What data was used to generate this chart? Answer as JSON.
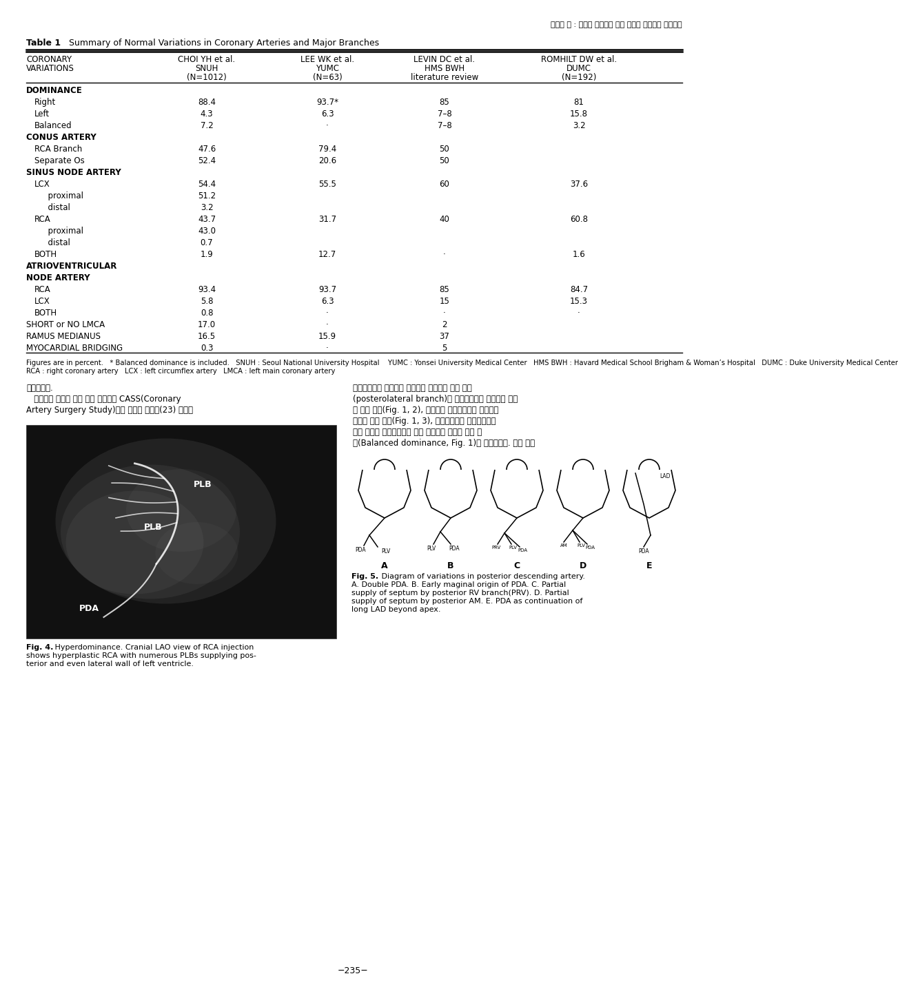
{
  "page_title": "최영희 외 : 관동맥 조영술에 의한 한국인 관동맥의 정상변이",
  "table_title": "Table 1",
  "table_title_rest": " Summary of Normal Variations in Coronary Arteries and Major Branches",
  "col_headers": [
    [
      "CORONARY",
      "VARIATIONS",
      ""
    ],
    [
      "CHOI YH et al.",
      "SNUH",
      "(N=1012)"
    ],
    [
      "LEE WK et al.",
      "YUMC",
      "(N=63)"
    ],
    [
      "LEVIN DC et al.",
      "HMS BWH",
      "literature review"
    ],
    [
      "ROMHILT DW et al.",
      "DUMC",
      "(N=192)"
    ]
  ],
  "rows": [
    {
      "label": "DOMINANCE",
      "indent": 0,
      "bold": true,
      "values": [
        "",
        "",
        "",
        ""
      ]
    },
    {
      "label": "Right",
      "indent": 1,
      "bold": false,
      "values": [
        "88.4",
        "93.7*",
        "85",
        "81"
      ]
    },
    {
      "label": "Left",
      "indent": 1,
      "bold": false,
      "values": [
        "4.3",
        "6.3",
        "7–8",
        "15.8"
      ]
    },
    {
      "label": "Balanced",
      "indent": 1,
      "bold": false,
      "values": [
        "7.2",
        "·",
        "7–8",
        "3.2"
      ]
    },
    {
      "label": "CONUS ARTERY",
      "indent": 0,
      "bold": true,
      "values": [
        "",
        "",
        "",
        ""
      ]
    },
    {
      "label": "RCA Branch",
      "indent": 1,
      "bold": false,
      "values": [
        "47.6",
        "79.4",
        "50",
        ""
      ]
    },
    {
      "label": "Separate Os",
      "indent": 1,
      "bold": false,
      "values": [
        "52.4",
        "20.6",
        "50",
        ""
      ]
    },
    {
      "label": "SINUS NODE ARTERY",
      "indent": 0,
      "bold": true,
      "values": [
        "",
        "",
        "",
        ""
      ]
    },
    {
      "label": "LCX",
      "indent": 1,
      "bold": false,
      "values": [
        "54.4",
        "55.5",
        "60",
        "37.6"
      ]
    },
    {
      "label": "  proximal",
      "indent": 2,
      "bold": false,
      "values": [
        "51.2",
        "",
        "",
        ""
      ]
    },
    {
      "label": "  distal",
      "indent": 2,
      "bold": false,
      "values": [
        "3.2",
        "",
        "",
        ""
      ]
    },
    {
      "label": "RCA",
      "indent": 1,
      "bold": false,
      "values": [
        "43.7",
        "31.7",
        "40",
        "60.8"
      ]
    },
    {
      "label": "  proximal",
      "indent": 2,
      "bold": false,
      "values": [
        "43.0",
        "",
        "",
        ""
      ]
    },
    {
      "label": "  distal",
      "indent": 2,
      "bold": false,
      "values": [
        "0.7",
        "",
        "",
        ""
      ]
    },
    {
      "label": "BOTH",
      "indent": 1,
      "bold": false,
      "values": [
        "1.9",
        "12.7",
        "·",
        "1.6"
      ]
    },
    {
      "label": "ATRIOVENTRICULAR",
      "indent": 0,
      "bold": true,
      "values": [
        "",
        "",
        "",
        ""
      ]
    },
    {
      "label": "NODE ARTERY",
      "indent": 0,
      "bold": true,
      "values": [
        "",
        "",
        "",
        ""
      ]
    },
    {
      "label": "RCA",
      "indent": 1,
      "bold": false,
      "values": [
        "93.4",
        "93.7",
        "85",
        "84.7"
      ]
    },
    {
      "label": "LCX",
      "indent": 1,
      "bold": false,
      "values": [
        "5.8",
        "6.3",
        "15",
        "15.3"
      ]
    },
    {
      "label": "BOTH",
      "indent": 1,
      "bold": false,
      "values": [
        "0.8",
        "·",
        "·",
        "·"
      ]
    },
    {
      "label": "SHORT or NO LMCA",
      "indent": 0,
      "bold": false,
      "values": [
        "17.0",
        "·",
        "2",
        ""
      ]
    },
    {
      "label": "RAMUS MEDIANUS",
      "indent": 0,
      "bold": false,
      "values": [
        "16.5",
        "15.9",
        "37",
        ""
      ]
    },
    {
      "label": "MYOCARDIAL BRIDGING",
      "indent": 0,
      "bold": false,
      "values": [
        "0.3",
        "·",
        "5",
        ""
      ]
    }
  ],
  "footnote_line1": "Figures are in percent.   * Balanced dominance is included.   SNUH : Seoul National University Hospital    YUMC : Yonsei University Medical Center   HMS BWH : Havard Medical School Brigham & Woman’s Hospital   DUMC : Duke University Medical Center",
  "footnote_line2": "RCA : right coronary artery   LCX : left circumflex artery   LMCA : left main coronary artery",
  "korean_left_1": "제외하였다.",
  "korean_left_2": "   관동맥의 우세는 가장 널리 통용되는 CASS(Coronary",
  "korean_left_3": "Artery Surgery Study)에서 제시한 정의에(23) 따라서",
  "korean_right_1": "후하행동맥과 좌심실의 후측벽에 분포하는 후측 분지",
  "korean_right_2": "(posterolateral branch)가 우관동맥에서 기시하는 경우",
  "korean_right_3": "를 우측 우세(Fig. 1, 2), 양혁관이 좌관동맥에서 기시하는",
  "korean_right_4": "경우를 좌측 우세(Fig. 1, 3), 후하행동맥은 우관동맥에서",
  "korean_right_5": "후측 분지는 좌관동맥에서 각각 기시하는 경우를 균형 우",
  "korean_right_6": "세(Balanced dominance, Fig. 1)로 분류하였다. 한편 특히",
  "fig4_cap1": "Fig. 4.",
  "fig4_cap1_rest": " Hyperdominance. Cranial LAO view of RCA injection",
  "fig4_cap2": "shows hyperplastic RCA with numerous PLBs supplying pos-",
  "fig4_cap3": "terior and even lateral wall of left ventricle.",
  "fig5_cap1": "Fig. 5.",
  "fig5_cap1_rest": " Diagram of variations in posterior descending artery.",
  "fig5_cap2": "A. Double PDA. B. Early maginal origin of PDA. C. Partial",
  "fig5_cap3": "supply of septum by posterior RV branch(PRV). D. Partial",
  "fig5_cap4": "supply of septum by posterior AM. E. PDA as continuation of",
  "fig5_cap5": "long LAD beyond apex.",
  "page_number": "−235−",
  "bg_color": "#ffffff"
}
